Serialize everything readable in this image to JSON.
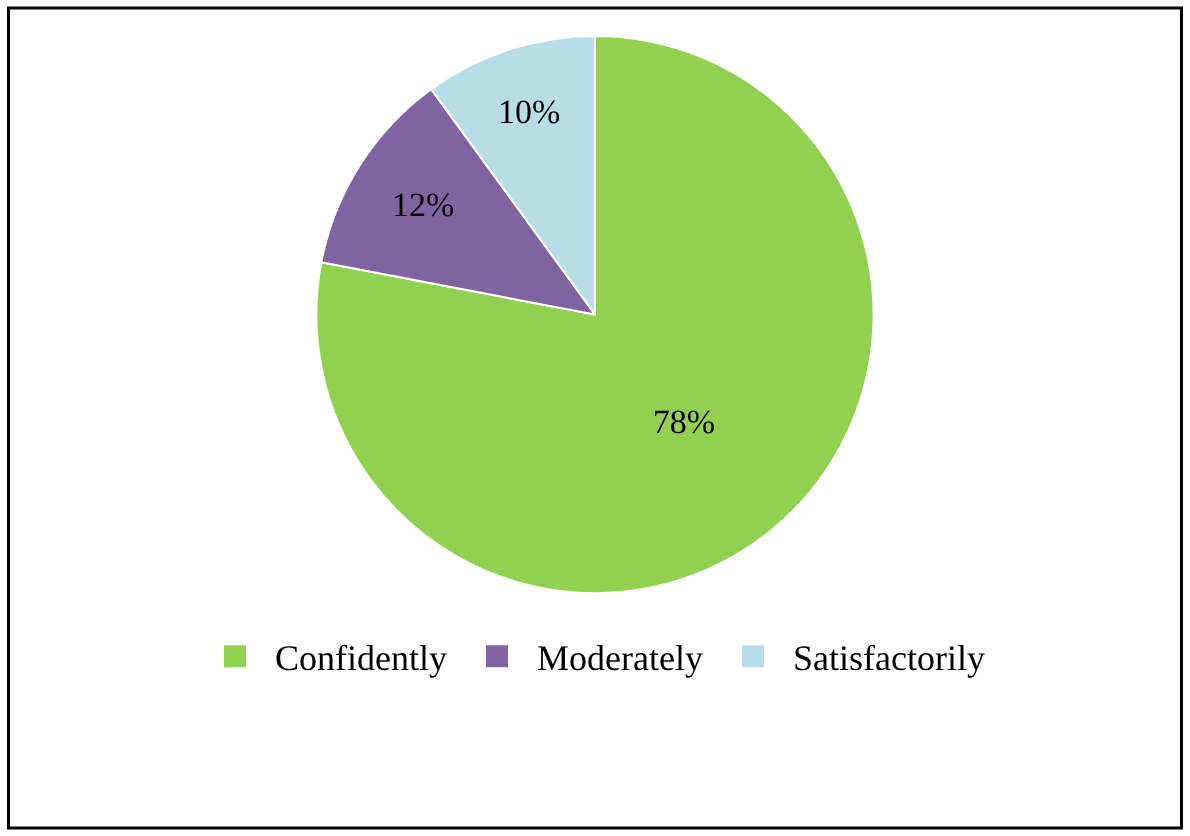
{
  "chart_data": {
    "type": "pie",
    "categories": [
      "Confidently",
      "Moderately",
      "Satisfactorily"
    ],
    "values": [
      78,
      12,
      10
    ],
    "value_labels": [
      "78%",
      "12%",
      "10%"
    ],
    "colors": [
      "#92d050",
      "#8064a2",
      "#b7dee8"
    ],
    "legend": "bottom"
  }
}
